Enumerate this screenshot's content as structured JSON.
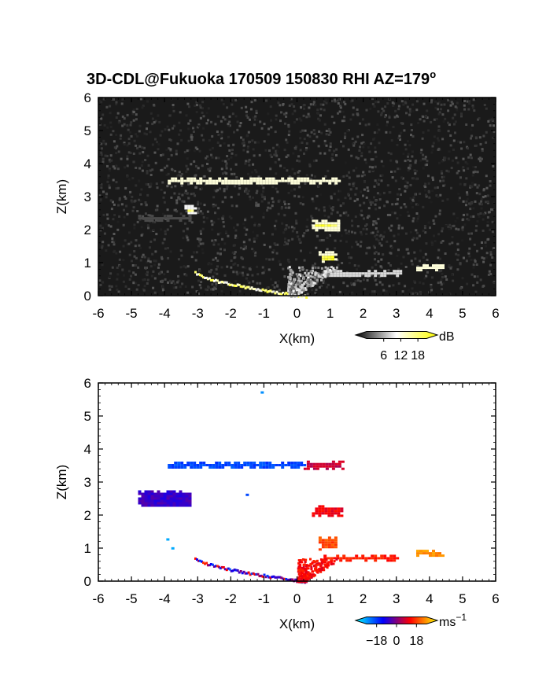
{
  "title": "3D-CDL@Fukuoka 170509 150830 RHI AZ=179",
  "title_superscript": "o",
  "chart_data": [
    {
      "type": "heatmap",
      "name": "snr",
      "xlabel": "X(km)",
      "ylabel": "Z(km)",
      "xlim": [
        -6,
        6
      ],
      "ylim": [
        0,
        6
      ],
      "xticks": [
        "-6",
        "-5",
        "-4",
        "-3",
        "-2",
        "-1",
        "0",
        "1",
        "2",
        "3",
        "4",
        "5",
        "6"
      ],
      "yticks": [
        "0",
        "1",
        "2",
        "3",
        "4",
        "5",
        "6"
      ],
      "background_color": "#1a1a1a",
      "colorbar": {
        "unit": "dB",
        "ticks": [
          "6",
          "12",
          "18"
        ],
        "tick_values": [
          6,
          12,
          18
        ],
        "range": [
          0,
          21
        ],
        "colors": [
          "#000000",
          "#ffffff",
          "#ffff00"
        ]
      },
      "features": [
        {
          "kind": "layer",
          "x": [
            -4.0,
            1.3
          ],
          "z": [
            3.38,
            3.58
          ],
          "value": 18
        },
        {
          "kind": "patch",
          "x": [
            -3.4,
            -3.1
          ],
          "z": [
            2.5,
            2.75
          ],
          "value": 16
        },
        {
          "kind": "patch",
          "x": [
            -4.8,
            -3.2
          ],
          "z": [
            2.3,
            2.45
          ],
          "value": 9
        },
        {
          "kind": "patch",
          "x": [
            0.45,
            1.3
          ],
          "z": [
            2.0,
            2.3
          ],
          "value": 18
        },
        {
          "kind": "patch",
          "x": [
            0.65,
            1.15
          ],
          "z": [
            1.0,
            1.35
          ],
          "value": 18
        },
        {
          "kind": "layer",
          "x": [
            0.8,
            3.1
          ],
          "z": [
            0.62,
            0.78
          ],
          "value": 15
        },
        {
          "kind": "patch",
          "x": [
            3.6,
            4.4
          ],
          "z": [
            0.8,
            0.95
          ],
          "value": 18
        },
        {
          "kind": "arc",
          "x": [
            -3.1,
            0.3
          ],
          "z": [
            0.0,
            0.75
          ],
          "value": 14
        },
        {
          "kind": "cone",
          "x": [
            -0.3,
            1.3
          ],
          "z": [
            0.0,
            0.9
          ],
          "value": 7
        }
      ]
    },
    {
      "type": "heatmap",
      "name": "doppler_velocity",
      "xlabel": "X(km)",
      "ylabel": "Z(km)",
      "xlim": [
        -6,
        6
      ],
      "ylim": [
        0,
        6
      ],
      "xticks": [
        "-6",
        "-5",
        "-4",
        "-3",
        "-2",
        "-1",
        "0",
        "1",
        "2",
        "3",
        "4",
        "5",
        "6"
      ],
      "yticks": [
        "0",
        "1",
        "2",
        "3",
        "4",
        "5",
        "6"
      ],
      "background_color": "#ffffff",
      "colorbar": {
        "unit": "ms",
        "unit_superscript": "−1",
        "ticks": [
          "−18",
          "0",
          "18"
        ],
        "tick_values": [
          -18,
          0,
          18
        ],
        "range": [
          -27,
          27
        ],
        "colors": [
          "#00ffff",
          "#0000ff",
          "#ff0000",
          "#ffff00"
        ]
      },
      "features": [
        {
          "kind": "layer",
          "x": [
            -4.0,
            0.2
          ],
          "z": [
            3.42,
            3.62
          ],
          "value": -14
        },
        {
          "kind": "layer",
          "x": [
            0.2,
            1.4
          ],
          "z": [
            3.38,
            3.65
          ],
          "value": 5
        },
        {
          "kind": "patch",
          "x": [
            -4.8,
            -3.2
          ],
          "z": [
            2.25,
            2.75
          ],
          "value": -5
        },
        {
          "kind": "patch",
          "x": [
            0.45,
            1.35
          ],
          "z": [
            2.0,
            2.3
          ],
          "value": 8
        },
        {
          "kind": "patch",
          "x": [
            0.65,
            1.2
          ],
          "z": [
            0.95,
            1.35
          ],
          "value": 14
        },
        {
          "kind": "layer",
          "x": [
            0.8,
            3.1
          ],
          "z": [
            0.6,
            0.8
          ],
          "value": 11
        },
        {
          "kind": "patch",
          "x": [
            3.6,
            4.4
          ],
          "z": [
            0.8,
            0.95
          ],
          "value": 19
        },
        {
          "kind": "arc",
          "x": [
            -3.1,
            0.3
          ],
          "z": [
            0.0,
            0.75
          ],
          "value": -3
        },
        {
          "kind": "cone",
          "x": [
            0.0,
            1.3
          ],
          "z": [
            0.0,
            0.7
          ],
          "value": 9
        },
        {
          "kind": "dot",
          "x": [
            -1.05,
            -1.05
          ],
          "z": [
            5.7,
            5.7
          ],
          "value": -19
        },
        {
          "kind": "dot",
          "x": [
            -3.9,
            -3.9
          ],
          "z": [
            1.25,
            1.25
          ],
          "value": -21
        },
        {
          "kind": "dot",
          "x": [
            -3.75,
            -3.75
          ],
          "z": [
            0.98,
            0.98
          ],
          "value": -21
        },
        {
          "kind": "dot",
          "x": [
            -1.5,
            -1.5
          ],
          "z": [
            2.6,
            2.6
          ],
          "value": -14
        }
      ]
    }
  ]
}
